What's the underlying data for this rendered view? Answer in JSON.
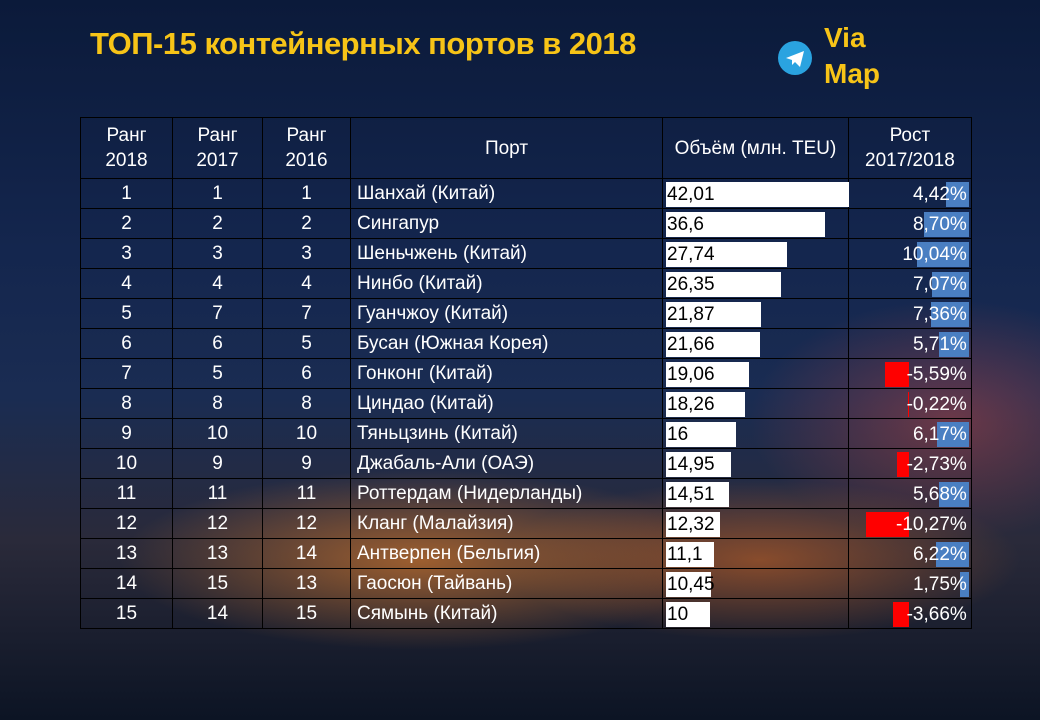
{
  "header": {
    "title": "ТОП-15 контейнерных портов в 2018",
    "logo_line1": "Via",
    "logo_line2": "Map"
  },
  "table": {
    "columns": [
      "Ранг 2018",
      "Ранг 2017",
      "Ранг 2016",
      "Порт",
      "Объём (млн. TEU)",
      "Рост 2017/2018"
    ],
    "rows": [
      {
        "rank_2018": 1,
        "rank_2017": 1,
        "rank_2016": 1,
        "port": "Шанхай (Китай)",
        "volume": 42.01,
        "volume_label": "42,01",
        "growth": 4.42,
        "growth_label": "4,42%"
      },
      {
        "rank_2018": 2,
        "rank_2017": 2,
        "rank_2016": 2,
        "port": "Сингапур",
        "volume": 36.6,
        "volume_label": "36,6",
        "growth": 8.7,
        "growth_label": "8,70%"
      },
      {
        "rank_2018": 3,
        "rank_2017": 3,
        "rank_2016": 3,
        "port": "Шеньчжень (Китай)",
        "volume": 27.74,
        "volume_label": "27,74",
        "growth": 10.04,
        "growth_label": "10,04%"
      },
      {
        "rank_2018": 4,
        "rank_2017": 4,
        "rank_2016": 4,
        "port": "Нинбо (Китай)",
        "volume": 26.35,
        "volume_label": "26,35",
        "growth": 7.07,
        "growth_label": "7,07%"
      },
      {
        "rank_2018": 5,
        "rank_2017": 7,
        "rank_2016": 7,
        "port": "Гуанчжоу (Китай)",
        "volume": 21.87,
        "volume_label": "21,87",
        "growth": 7.36,
        "growth_label": "7,36%"
      },
      {
        "rank_2018": 6,
        "rank_2017": 6,
        "rank_2016": 5,
        "port": "Бусан (Южная Корея)",
        "volume": 21.66,
        "volume_label": "21,66",
        "growth": 5.71,
        "growth_label": "5,71%"
      },
      {
        "rank_2018": 7,
        "rank_2017": 5,
        "rank_2016": 6,
        "port": "Гонконг (Китай)",
        "volume": 19.06,
        "volume_label": "19,06",
        "growth": -5.59,
        "growth_label": "-5,59%"
      },
      {
        "rank_2018": 8,
        "rank_2017": 8,
        "rank_2016": 8,
        "port": "Циндао (Китай)",
        "volume": 18.26,
        "volume_label": "18,26",
        "growth": -0.22,
        "growth_label": "-0,22%"
      },
      {
        "rank_2018": 9,
        "rank_2017": 10,
        "rank_2016": 10,
        "port": "Тяньцзинь (Китай)",
        "volume": 16,
        "volume_label": "16",
        "growth": 6.17,
        "growth_label": "6,17%"
      },
      {
        "rank_2018": 10,
        "rank_2017": 9,
        "rank_2016": 9,
        "port": "Джабаль-Али (ОАЭ)",
        "volume": 14.95,
        "volume_label": "14,95",
        "growth": -2.73,
        "growth_label": "-2,73%"
      },
      {
        "rank_2018": 11,
        "rank_2017": 11,
        "rank_2016": 11,
        "port": "Роттердам (Нидерланды)",
        "volume": 14.51,
        "volume_label": "14,51",
        "growth": 5.68,
        "growth_label": "5,68%"
      },
      {
        "rank_2018": 12,
        "rank_2017": 12,
        "rank_2016": 12,
        "port": "Кланг (Малайзия)",
        "volume": 12.32,
        "volume_label": "12,32",
        "growth": -10.27,
        "growth_label": "-10,27%"
      },
      {
        "rank_2018": 13,
        "rank_2017": 13,
        "rank_2016": 14,
        "port": "Антверпен (Бельгия)",
        "volume": 11.1,
        "volume_label": "11,1",
        "growth": 6.22,
        "growth_label": "6,22%"
      },
      {
        "rank_2018": 14,
        "rank_2017": 15,
        "rank_2016": 13,
        "port": "Гаосюн (Тайвань)",
        "volume": 10.45,
        "volume_label": "10,45",
        "growth": 1.75,
        "growth_label": "1,75%"
      },
      {
        "rank_2018": 15,
        "rank_2017": 14,
        "rank_2016": 15,
        "port": "Сямынь (Китай)",
        "volume": 10,
        "volume_label": "10",
        "growth": -3.66,
        "growth_label": "-3,66%"
      }
    ]
  }
}
